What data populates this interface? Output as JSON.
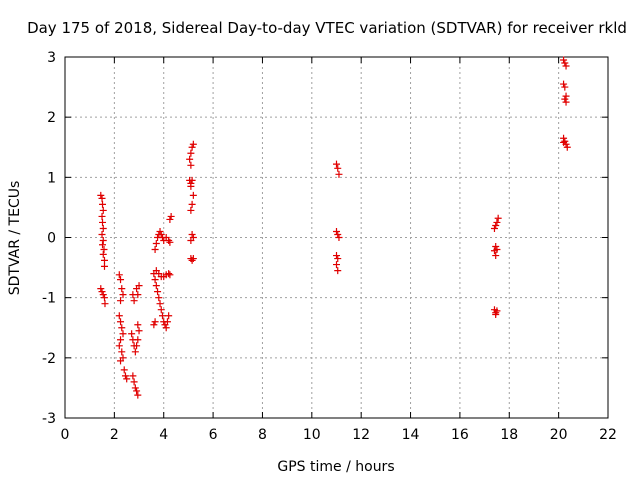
{
  "chart_data": {
    "type": "scatter",
    "title": "Day 175 of 2018, Sidereal Day-to-day VTEC variation (SDTVAR) for receiver rkld",
    "xlabel": "GPS time / hours",
    "ylabel": "SDTVAR / TECUs",
    "xlim": [
      0,
      22
    ],
    "ylim": [
      -3,
      3
    ],
    "xticks": [
      0,
      2,
      4,
      6,
      8,
      10,
      12,
      14,
      16,
      18,
      20,
      22
    ],
    "yticks": [
      -3,
      -2,
      -1,
      0,
      1,
      2,
      3
    ],
    "grid": true,
    "marker": "plus",
    "color": "#e00000",
    "series": [
      {
        "name": "SDTVAR",
        "points": [
          [
            1.45,
            0.7
          ],
          [
            1.5,
            0.65
          ],
          [
            1.52,
            0.55
          ],
          [
            1.55,
            0.45
          ],
          [
            1.5,
            0.35
          ],
          [
            1.52,
            0.25
          ],
          [
            1.55,
            0.15
          ],
          [
            1.5,
            0.05
          ],
          [
            1.55,
            -0.05
          ],
          [
            1.52,
            -0.12
          ],
          [
            1.58,
            -0.2
          ],
          [
            1.55,
            -0.28
          ],
          [
            1.6,
            -0.38
          ],
          [
            1.6,
            -0.48
          ],
          [
            1.45,
            -0.85
          ],
          [
            1.5,
            -0.9
          ],
          [
            1.55,
            -0.95
          ],
          [
            1.6,
            -1.0
          ],
          [
            1.62,
            -1.1
          ],
          [
            2.2,
            -0.62
          ],
          [
            2.25,
            -0.7
          ],
          [
            2.3,
            -0.85
          ],
          [
            2.35,
            -0.95
          ],
          [
            2.25,
            -1.05
          ],
          [
            2.2,
            -1.3
          ],
          [
            2.25,
            -1.4
          ],
          [
            2.3,
            -1.5
          ],
          [
            2.35,
            -1.6
          ],
          [
            2.25,
            -1.7
          ],
          [
            2.2,
            -1.8
          ],
          [
            2.3,
            -1.9
          ],
          [
            2.35,
            -2.0
          ],
          [
            2.25,
            -2.05
          ],
          [
            2.4,
            -2.2
          ],
          [
            2.45,
            -2.3
          ],
          [
            2.5,
            -2.35
          ],
          [
            2.75,
            -0.95
          ],
          [
            2.8,
            -1.05
          ],
          [
            2.9,
            -0.85
          ],
          [
            2.95,
            -0.95
          ],
          [
            3.0,
            -0.8
          ],
          [
            2.7,
            -1.6
          ],
          [
            2.75,
            -1.7
          ],
          [
            2.8,
            -1.8
          ],
          [
            2.85,
            -1.9
          ],
          [
            2.9,
            -1.8
          ],
          [
            2.95,
            -1.7
          ],
          [
            3.0,
            -1.55
          ],
          [
            2.95,
            -1.45
          ],
          [
            2.75,
            -2.3
          ],
          [
            2.8,
            -2.4
          ],
          [
            2.85,
            -2.5
          ],
          [
            2.9,
            -2.55
          ],
          [
            2.95,
            -2.62
          ],
          [
            3.6,
            -0.6
          ],
          [
            3.65,
            -0.7
          ],
          [
            3.7,
            -0.8
          ],
          [
            3.75,
            -0.9
          ],
          [
            3.8,
            -1.0
          ],
          [
            3.85,
            -1.1
          ],
          [
            3.9,
            -1.2
          ],
          [
            3.95,
            -1.3
          ],
          [
            4.0,
            -1.4
          ],
          [
            4.05,
            -1.45
          ],
          [
            4.1,
            -1.5
          ],
          [
            4.15,
            -1.4
          ],
          [
            4.2,
            -1.3
          ],
          [
            3.65,
            -0.2
          ],
          [
            3.7,
            -0.1
          ],
          [
            3.75,
            0.0
          ],
          [
            3.8,
            0.05
          ],
          [
            3.85,
            0.1
          ],
          [
            3.9,
            0.05
          ],
          [
            3.95,
            0.0
          ],
          [
            4.0,
            -0.05
          ],
          [
            4.1,
            0.0
          ],
          [
            4.2,
            -0.05
          ],
          [
            4.25,
            -0.08
          ],
          [
            3.7,
            -0.55
          ],
          [
            3.8,
            -0.6
          ],
          [
            3.9,
            -0.65
          ],
          [
            4.0,
            -0.65
          ],
          [
            4.1,
            -0.62
          ],
          [
            4.2,
            -0.6
          ],
          [
            4.25,
            -0.62
          ],
          [
            3.6,
            -1.45
          ],
          [
            3.65,
            -1.4
          ],
          [
            4.25,
            0.3
          ],
          [
            4.3,
            0.35
          ],
          [
            5.05,
            1.3
          ],
          [
            5.1,
            1.4
          ],
          [
            5.15,
            1.5
          ],
          [
            5.2,
            1.55
          ],
          [
            5.1,
            1.2
          ],
          [
            5.05,
            0.95
          ],
          [
            5.1,
            0.9
          ],
          [
            5.15,
            0.95
          ],
          [
            5.1,
            0.85
          ],
          [
            5.2,
            0.7
          ],
          [
            5.15,
            0.55
          ],
          [
            5.1,
            0.45
          ],
          [
            5.15,
            0.05
          ],
          [
            5.1,
            -0.05
          ],
          [
            5.2,
            0.0
          ],
          [
            5.1,
            -0.35
          ],
          [
            5.15,
            -0.38
          ],
          [
            5.2,
            -0.35
          ],
          [
            11.0,
            1.22
          ],
          [
            11.05,
            1.15
          ],
          [
            11.1,
            1.05
          ],
          [
            11.0,
            0.1
          ],
          [
            11.05,
            0.05
          ],
          [
            11.1,
            0.0
          ],
          [
            11.0,
            -0.3
          ],
          [
            11.05,
            -0.35
          ],
          [
            11.0,
            -0.45
          ],
          [
            11.05,
            -0.55
          ],
          [
            17.4,
            0.15
          ],
          [
            17.45,
            0.2
          ],
          [
            17.5,
            0.25
          ],
          [
            17.55,
            0.32
          ],
          [
            17.45,
            -0.15
          ],
          [
            17.4,
            -0.22
          ],
          [
            17.45,
            -0.3
          ],
          [
            17.5,
            -0.2
          ],
          [
            17.4,
            -1.2
          ],
          [
            17.45,
            -1.25
          ],
          [
            17.5,
            -1.22
          ],
          [
            17.45,
            -1.28
          ],
          [
            20.2,
            2.95
          ],
          [
            20.25,
            2.9
          ],
          [
            20.3,
            2.85
          ],
          [
            20.2,
            2.55
          ],
          [
            20.25,
            2.5
          ],
          [
            20.3,
            2.35
          ],
          [
            20.25,
            2.3
          ],
          [
            20.3,
            2.25
          ],
          [
            20.2,
            1.65
          ],
          [
            20.25,
            1.6
          ],
          [
            20.3,
            1.55
          ],
          [
            20.35,
            1.5
          ],
          [
            20.2,
            1.58
          ]
        ]
      }
    ]
  }
}
